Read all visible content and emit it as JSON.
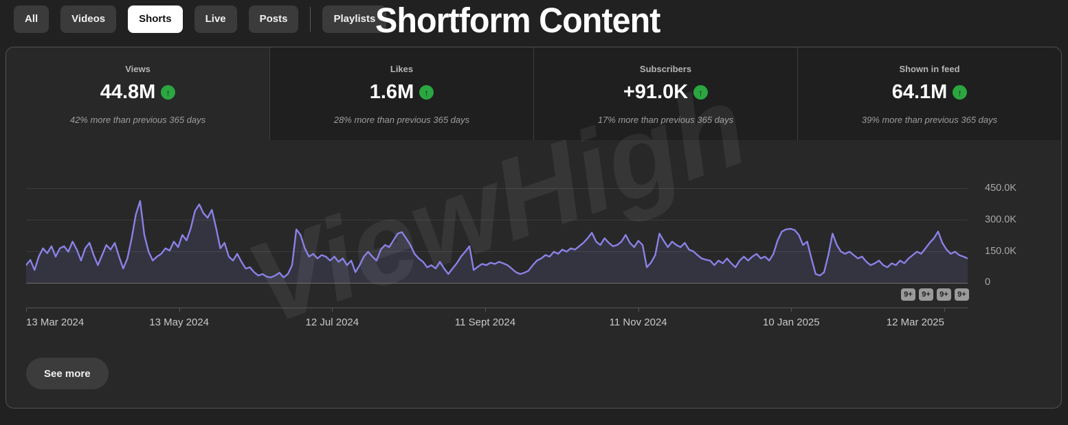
{
  "title": "Shortform Content",
  "watermark": "ViewHigh",
  "tabs": {
    "items": [
      {
        "label": "All",
        "selected": false
      },
      {
        "label": "Videos",
        "selected": false
      },
      {
        "label": "Shorts",
        "selected": true
      },
      {
        "label": "Live",
        "selected": false
      },
      {
        "label": "Posts",
        "selected": false
      },
      {
        "label": "Playlists",
        "selected": false
      }
    ]
  },
  "metrics": [
    {
      "label": "Views",
      "value": "44.8M",
      "trend": "up",
      "caption": "42% more than previous 365 days",
      "selected": true
    },
    {
      "label": "Likes",
      "value": "1.6M",
      "trend": "up",
      "caption": "28% more than previous 365 days",
      "selected": false
    },
    {
      "label": "Subscribers",
      "value": "+91.0K",
      "trend": "up",
      "caption": "17% more than previous 365 days",
      "selected": false
    },
    {
      "label": "Shown in feed",
      "value": "64.1M",
      "trend": "up",
      "caption": "39% more than previous 365 days",
      "selected": false
    }
  ],
  "trend_icon": "↑",
  "chart_data": {
    "type": "area",
    "title": "",
    "xlabel": "",
    "ylabel": "",
    "x_tick_labels": [
      "13 Mar 2024",
      "13 May 2024",
      "12 Jul 2024",
      "11 Sept 2024",
      "11 Nov 2024",
      "10 Jan 2025",
      "12 Mar 2025"
    ],
    "y_tick_labels": [
      "450.0K",
      "300.0K",
      "150.0K",
      "0"
    ],
    "ylim": [
      0,
      450000
    ],
    "grid": true,
    "legend_position": "none",
    "line_color": "#8a82e6",
    "fill_color": "rgba(137,130,230,0.13)",
    "series": [
      {
        "name": "Views",
        "unit": "thousands",
        "values": [
          84,
          109,
          61,
          125,
          164,
          141,
          174,
          125,
          164,
          174,
          148,
          196,
          158,
          106,
          164,
          190,
          132,
          84,
          132,
          180,
          158,
          190,
          125,
          68,
          116,
          212,
          325,
          389,
          228,
          148,
          106,
          125,
          138,
          164,
          154,
          196,
          170,
          228,
          202,
          260,
          341,
          373,
          331,
          309,
          347,
          260,
          164,
          190,
          125,
          106,
          138,
          100,
          68,
          74,
          51,
          35,
          42,
          29,
          26,
          35,
          48,
          26,
          42,
          84,
          254,
          228,
          164,
          125,
          138,
          116,
          132,
          125,
          106,
          125,
          100,
          116,
          84,
          106,
          51,
          84,
          125,
          148,
          125,
          106,
          158,
          180,
          170,
          202,
          234,
          241,
          212,
          180,
          138,
          116,
          100,
          74,
          84,
          68,
          100,
          68,
          42,
          68,
          93,
          125,
          148,
          174,
          61,
          77,
          90,
          84,
          96,
          90,
          100,
          93,
          84,
          68,
          51,
          42,
          48,
          58,
          84,
          106,
          116,
          132,
          125,
          148,
          138,
          158,
          148,
          164,
          158,
          174,
          190,
          212,
          238,
          196,
          180,
          212,
          190,
          174,
          180,
          196,
          228,
          190,
          170,
          200,
          180,
          74,
          96,
          132,
          234,
          200,
          170,
          196,
          180,
          170,
          190,
          158,
          150,
          132,
          116,
          110,
          106,
          84,
          106,
          93,
          116,
          93,
          74,
          106,
          125,
          106,
          125,
          138,
          116,
          125,
          106,
          138,
          202,
          244,
          254,
          257,
          251,
          228,
          180,
          196,
          116,
          42,
          35,
          51,
          132,
          234,
          180,
          148,
          138,
          148,
          132,
          116,
          125,
          100,
          84,
          93,
          106,
          84,
          74,
          93,
          84,
          106,
          93,
          116,
          132,
          148,
          138,
          164,
          190,
          212,
          244,
          190,
          158,
          138,
          148,
          132,
          125,
          116
        ]
      }
    ],
    "markers": [
      "9+",
      "9+",
      "9+",
      "9+"
    ]
  },
  "see_more_label": "See more",
  "colors": {
    "background": "#212121",
    "panel": "#282828",
    "card_unselected": "#1f1f1f",
    "chip": "#3b3b3b",
    "chip_selected": "#ffffff",
    "trend_green": "#2ba640",
    "line": "#8a82e6"
  }
}
